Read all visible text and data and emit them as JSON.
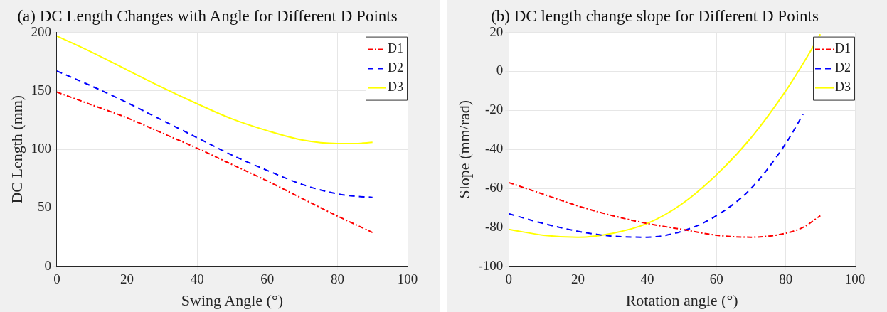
{
  "chart_data": [
    {
      "type": "line",
      "title": "(a) DC Length Changes with Angle for Different D Points",
      "xlabel": "Swing Angle (°)",
      "ylabel": "DC Length (mm)",
      "x": [
        0,
        10,
        20,
        30,
        40,
        50,
        60,
        70,
        80,
        85,
        90
      ],
      "series": [
        {
          "name": "D1",
          "color": "#ff0000",
          "line_style": "dashdot",
          "values": [
            149,
            138,
            127,
            114,
            101,
            87,
            73,
            58,
            43,
            36,
            29
          ]
        },
        {
          "name": "D2",
          "color": "#0000ff",
          "line_style": "dashed",
          "values": [
            167,
            154,
            140,
            125,
            110,
            95,
            82,
            70,
            62,
            60,
            59
          ]
        },
        {
          "name": "D3",
          "color": "#ffff00",
          "line_style": "solid",
          "values": [
            197,
            183,
            168,
            153,
            139,
            126,
            116,
            108,
            105,
            105,
            106
          ]
        }
      ],
      "xlim": [
        0,
        100
      ],
      "xticks": [
        0,
        20,
        40,
        60,
        80,
        100
      ],
      "ylim": [
        0,
        200
      ],
      "yticks": [
        0,
        50,
        100,
        150,
        200
      ],
      "grid": true,
      "legend": "top right",
      "marker": "none"
    },
    {
      "type": "line",
      "title": "(b) DC length change slope for Different D Points",
      "xlabel": "Rotation angle (°)",
      "ylabel": "Slope (mm/rad)",
      "series": [
        {
          "name": "D1",
          "color": "#ff0000",
          "line_style": "dashdot",
          "x": [
            0,
            10,
            20,
            30,
            40,
            50,
            60,
            70,
            80,
            85,
            90
          ],
          "values": [
            -57,
            -63,
            -69,
            -74,
            -78,
            -81,
            -84,
            -85,
            -83,
            -80,
            -74
          ]
        },
        {
          "name": "D2",
          "color": "#0000ff",
          "line_style": "dashed",
          "x": [
            0,
            10,
            20,
            30,
            40,
            50,
            60,
            70,
            80,
            85
          ],
          "values": [
            -73,
            -78,
            -82,
            -84.5,
            -85,
            -82,
            -74,
            -60,
            -37,
            -22
          ]
        },
        {
          "name": "D3",
          "color": "#ffff00",
          "line_style": "solid",
          "x": [
            0,
            10,
            20,
            30,
            40,
            50,
            60,
            70,
            80,
            85,
            90
          ],
          "values": [
            -81,
            -84,
            -85,
            -83,
            -78,
            -68,
            -53,
            -34,
            -10,
            4,
            19
          ]
        }
      ],
      "xlim": [
        0,
        100
      ],
      "xticks": [
        0,
        20,
        40,
        60,
        80,
        100
      ],
      "ylim": [
        -100,
        20
      ],
      "yticks": [
        -100,
        -80,
        -60,
        -40,
        -20,
        0,
        20
      ],
      "grid": true,
      "legend": "top right",
      "marker": "none"
    }
  ]
}
